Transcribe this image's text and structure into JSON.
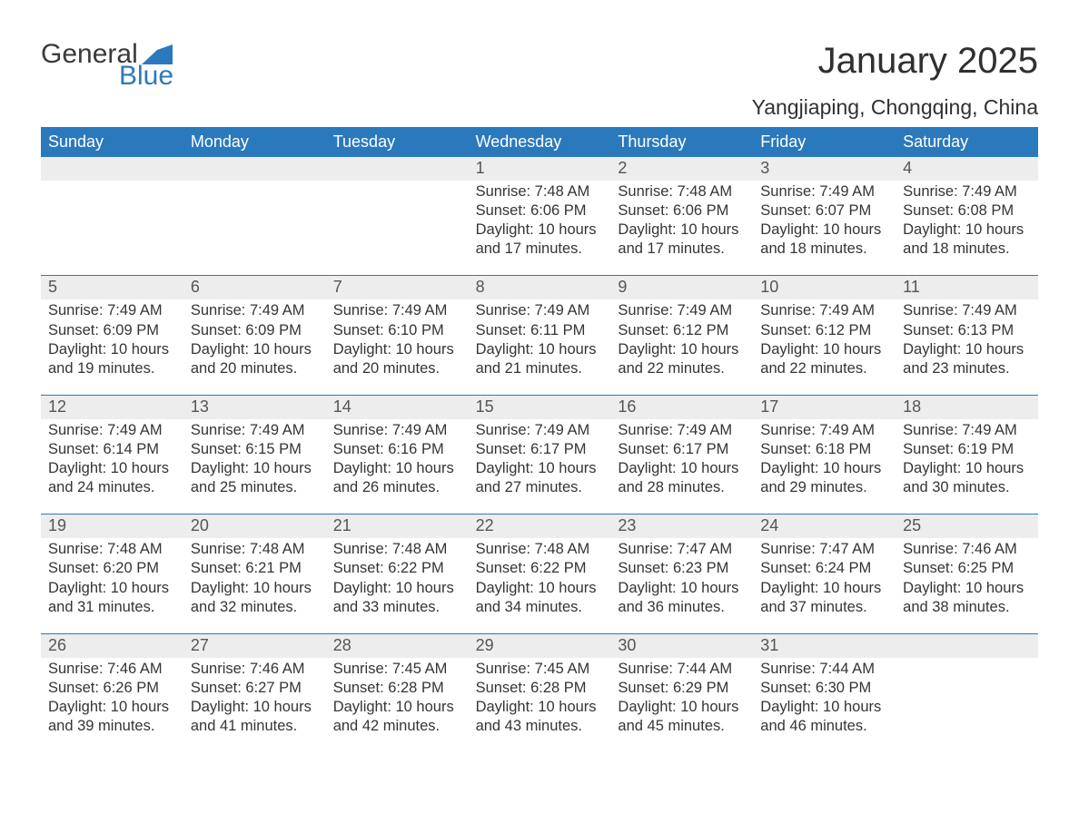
{
  "logo": {
    "text1": "General",
    "text2": "Blue",
    "shape_color": "#2b79bd"
  },
  "header": {
    "title": "January 2025",
    "subtitle": "Yangjiaping, Chongqing, China"
  },
  "styling": {
    "header_bg": "#2b79bd",
    "header_text_color": "#ffffff",
    "daynum_bg": "#ededed",
    "daynum_color": "#555555",
    "body_text_color": "#353535",
    "week_border_color": "#2b79bd",
    "title_fontsize": 40,
    "subtitle_fontsize": 23,
    "weekday_fontsize": 18,
    "daynum_fontsize": 18,
    "body_fontsize": 16.5,
    "columns": 7
  },
  "weekdays": [
    "Sunday",
    "Monday",
    "Tuesday",
    "Wednesday",
    "Thursday",
    "Friday",
    "Saturday"
  ],
  "weeks": [
    [
      {
        "day": "",
        "empty": true
      },
      {
        "day": "",
        "empty": true
      },
      {
        "day": "",
        "empty": true
      },
      {
        "day": "1",
        "sunrise": "7:48 AM",
        "sunset": "6:06 PM",
        "daylight": "10 hours and 17 minutes."
      },
      {
        "day": "2",
        "sunrise": "7:48 AM",
        "sunset": "6:06 PM",
        "daylight": "10 hours and 17 minutes."
      },
      {
        "day": "3",
        "sunrise": "7:49 AM",
        "sunset": "6:07 PM",
        "daylight": "10 hours and 18 minutes."
      },
      {
        "day": "4",
        "sunrise": "7:49 AM",
        "sunset": "6:08 PM",
        "daylight": "10 hours and 18 minutes."
      }
    ],
    [
      {
        "day": "5",
        "sunrise": "7:49 AM",
        "sunset": "6:09 PM",
        "daylight": "10 hours and 19 minutes."
      },
      {
        "day": "6",
        "sunrise": "7:49 AM",
        "sunset": "6:09 PM",
        "daylight": "10 hours and 20 minutes."
      },
      {
        "day": "7",
        "sunrise": "7:49 AM",
        "sunset": "6:10 PM",
        "daylight": "10 hours and 20 minutes."
      },
      {
        "day": "8",
        "sunrise": "7:49 AM",
        "sunset": "6:11 PM",
        "daylight": "10 hours and 21 minutes."
      },
      {
        "day": "9",
        "sunrise": "7:49 AM",
        "sunset": "6:12 PM",
        "daylight": "10 hours and 22 minutes."
      },
      {
        "day": "10",
        "sunrise": "7:49 AM",
        "sunset": "6:12 PM",
        "daylight": "10 hours and 22 minutes."
      },
      {
        "day": "11",
        "sunrise": "7:49 AM",
        "sunset": "6:13 PM",
        "daylight": "10 hours and 23 minutes."
      }
    ],
    [
      {
        "day": "12",
        "sunrise": "7:49 AM",
        "sunset": "6:14 PM",
        "daylight": "10 hours and 24 minutes."
      },
      {
        "day": "13",
        "sunrise": "7:49 AM",
        "sunset": "6:15 PM",
        "daylight": "10 hours and 25 minutes."
      },
      {
        "day": "14",
        "sunrise": "7:49 AM",
        "sunset": "6:16 PM",
        "daylight": "10 hours and 26 minutes."
      },
      {
        "day": "15",
        "sunrise": "7:49 AM",
        "sunset": "6:17 PM",
        "daylight": "10 hours and 27 minutes."
      },
      {
        "day": "16",
        "sunrise": "7:49 AM",
        "sunset": "6:17 PM",
        "daylight": "10 hours and 28 minutes."
      },
      {
        "day": "17",
        "sunrise": "7:49 AM",
        "sunset": "6:18 PM",
        "daylight": "10 hours and 29 minutes."
      },
      {
        "day": "18",
        "sunrise": "7:49 AM",
        "sunset": "6:19 PM",
        "daylight": "10 hours and 30 minutes."
      }
    ],
    [
      {
        "day": "19",
        "sunrise": "7:48 AM",
        "sunset": "6:20 PM",
        "daylight": "10 hours and 31 minutes."
      },
      {
        "day": "20",
        "sunrise": "7:48 AM",
        "sunset": "6:21 PM",
        "daylight": "10 hours and 32 minutes."
      },
      {
        "day": "21",
        "sunrise": "7:48 AM",
        "sunset": "6:22 PM",
        "daylight": "10 hours and 33 minutes."
      },
      {
        "day": "22",
        "sunrise": "7:48 AM",
        "sunset": "6:22 PM",
        "daylight": "10 hours and 34 minutes."
      },
      {
        "day": "23",
        "sunrise": "7:47 AM",
        "sunset": "6:23 PM",
        "daylight": "10 hours and 36 minutes."
      },
      {
        "day": "24",
        "sunrise": "7:47 AM",
        "sunset": "6:24 PM",
        "daylight": "10 hours and 37 minutes."
      },
      {
        "day": "25",
        "sunrise": "7:46 AM",
        "sunset": "6:25 PM",
        "daylight": "10 hours and 38 minutes."
      }
    ],
    [
      {
        "day": "26",
        "sunrise": "7:46 AM",
        "sunset": "6:26 PM",
        "daylight": "10 hours and 39 minutes."
      },
      {
        "day": "27",
        "sunrise": "7:46 AM",
        "sunset": "6:27 PM",
        "daylight": "10 hours and 41 minutes."
      },
      {
        "day": "28",
        "sunrise": "7:45 AM",
        "sunset": "6:28 PM",
        "daylight": "10 hours and 42 minutes."
      },
      {
        "day": "29",
        "sunrise": "7:45 AM",
        "sunset": "6:28 PM",
        "daylight": "10 hours and 43 minutes."
      },
      {
        "day": "30",
        "sunrise": "7:44 AM",
        "sunset": "6:29 PM",
        "daylight": "10 hours and 45 minutes."
      },
      {
        "day": "31",
        "sunrise": "7:44 AM",
        "sunset": "6:30 PM",
        "daylight": "10 hours and 46 minutes."
      },
      {
        "day": "",
        "empty": true
      }
    ]
  ],
  "labels": {
    "sunrise_prefix": "Sunrise: ",
    "sunset_prefix": "Sunset: ",
    "daylight_prefix": "Daylight: "
  }
}
